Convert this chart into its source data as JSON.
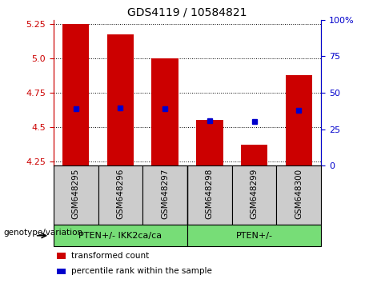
{
  "title": "GDS4119 / 10584821",
  "samples": [
    "GSM648295",
    "GSM648296",
    "GSM648297",
    "GSM648298",
    "GSM648299",
    "GSM648300"
  ],
  "bar_values": [
    5.25,
    5.175,
    5.0,
    4.55,
    4.37,
    4.88
  ],
  "bar_base": 4.22,
  "percentile_values": [
    4.635,
    4.638,
    4.632,
    4.548,
    4.538,
    4.622
  ],
  "ylim": [
    4.22,
    5.28
  ],
  "yticks": [
    4.25,
    4.5,
    4.75,
    5.0,
    5.25
  ],
  "right_yticks": [
    0,
    25,
    50,
    75,
    100
  ],
  "bar_color": "#cc0000",
  "percentile_color": "#0000cc",
  "group1_label": "PTEN+/- IKK2ca/ca",
  "group2_label": "PTEN+/-",
  "group_color": "#77dd77",
  "sample_bg_color": "#cccccc",
  "legend_red": "transformed count",
  "legend_blue": "percentile rank within the sample",
  "genotype_label": "genotype/variation",
  "bar_width": 0.6
}
